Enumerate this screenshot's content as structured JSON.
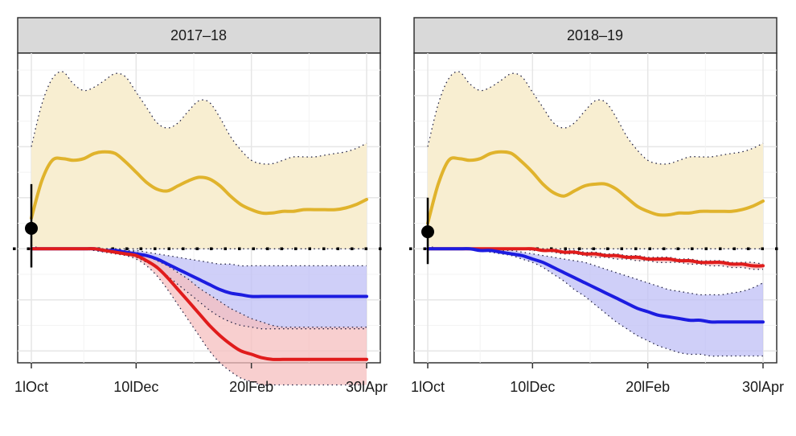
{
  "chart_data": [
    {
      "type": "line",
      "title": "2017–18",
      "x_ticks": [
        "1lOct",
        "10lDec",
        "20lFeb",
        "30lApr"
      ],
      "x": [
        0,
        1,
        2,
        3,
        4,
        5,
        6,
        7,
        8,
        9,
        10,
        11,
        12,
        13,
        14,
        15,
        16,
        17,
        18,
        19,
        20,
        21,
        22,
        23,
        24,
        25,
        26,
        27,
        28,
        29,
        30,
        31,
        32
      ],
      "baseline": 0,
      "observed_point": {
        "x": 0,
        "y": 0.12,
        "low": -0.11,
        "high": 0.38
      },
      "ylim": [
        -0.67,
        1.15
      ],
      "series": [
        {
          "color": "#e0b32c",
          "values": [
            0.18,
            0.4,
            0.52,
            0.53,
            0.52,
            0.53,
            0.56,
            0.57,
            0.56,
            0.51,
            0.45,
            0.39,
            0.35,
            0.34,
            0.37,
            0.4,
            0.42,
            0.41,
            0.37,
            0.31,
            0.26,
            0.23,
            0.21,
            0.21,
            0.22,
            0.22,
            0.23,
            0.23,
            0.23,
            0.23,
            0.24,
            0.26,
            0.29
          ],
          "lower": [
            0.02,
            0.0,
            0.0,
            0.0,
            0.0,
            0.0,
            0.0,
            0.0,
            0.0,
            0.0,
            0.0,
            0.0,
            0.0,
            0.0,
            0.0,
            0.0,
            0.0,
            0.0,
            0.0,
            0.0,
            0.0,
            0.0,
            0.0,
            0.0,
            0.0,
            0.0,
            0.0,
            0.0,
            0.0,
            0.0,
            0.0,
            0.0,
            0.0
          ],
          "upper": [
            0.6,
            0.85,
            1.0,
            1.04,
            0.97,
            0.93,
            0.95,
            0.99,
            1.03,
            1.01,
            0.92,
            0.83,
            0.74,
            0.71,
            0.74,
            0.81,
            0.87,
            0.86,
            0.77,
            0.66,
            0.58,
            0.52,
            0.5,
            0.5,
            0.52,
            0.54,
            0.54,
            0.54,
            0.55,
            0.56,
            0.57,
            0.59,
            0.62
          ]
        },
        {
          "color": "#1c1ce0",
          "values": [
            0.0,
            0.0,
            0.0,
            0.0,
            0.0,
            0.0,
            0.0,
            -0.01,
            -0.01,
            -0.02,
            -0.03,
            -0.04,
            -0.06,
            -0.09,
            -0.12,
            -0.15,
            -0.18,
            -0.21,
            -0.24,
            -0.26,
            -0.27,
            -0.28,
            -0.28,
            -0.28,
            -0.28,
            -0.28,
            -0.28,
            -0.28,
            -0.28,
            -0.28,
            -0.28,
            -0.28,
            -0.28
          ],
          "lower": [
            0.0,
            0.0,
            0.0,
            0.0,
            0.0,
            0.0,
            -0.01,
            -0.01,
            -0.02,
            -0.03,
            -0.05,
            -0.08,
            -0.11,
            -0.16,
            -0.21,
            -0.26,
            -0.31,
            -0.36,
            -0.4,
            -0.43,
            -0.45,
            -0.46,
            -0.47,
            -0.47,
            -0.47,
            -0.47,
            -0.47,
            -0.47,
            -0.47,
            -0.47,
            -0.47,
            -0.47,
            -0.47
          ],
          "upper": [
            0.0,
            0.0,
            0.0,
            0.0,
            0.0,
            0.0,
            0.0,
            0.0,
            0.0,
            -0.01,
            -0.01,
            -0.02,
            -0.03,
            -0.04,
            -0.05,
            -0.06,
            -0.07,
            -0.08,
            -0.09,
            -0.09,
            -0.1,
            -0.1,
            -0.1,
            -0.1,
            -0.1,
            -0.1,
            -0.1,
            -0.1,
            -0.1,
            -0.1,
            -0.1,
            -0.1,
            -0.1
          ]
        },
        {
          "color": "#e01c1c",
          "values": [
            0.0,
            0.0,
            0.0,
            0.0,
            0.0,
            0.0,
            0.0,
            -0.01,
            -0.02,
            -0.03,
            -0.04,
            -0.07,
            -0.11,
            -0.17,
            -0.24,
            -0.31,
            -0.38,
            -0.45,
            -0.51,
            -0.56,
            -0.6,
            -0.62,
            -0.64,
            -0.65,
            -0.65,
            -0.65,
            -0.65,
            -0.65,
            -0.65,
            -0.65,
            -0.65,
            -0.65,
            -0.65
          ],
          "lower": [
            0.0,
            0.0,
            0.0,
            0.0,
            0.0,
            0.0,
            -0.01,
            -0.02,
            -0.03,
            -0.04,
            -0.06,
            -0.1,
            -0.16,
            -0.24,
            -0.33,
            -0.42,
            -0.51,
            -0.6,
            -0.67,
            -0.72,
            -0.76,
            -0.78,
            -0.8,
            -0.8,
            -0.8,
            -0.8,
            -0.8,
            -0.8,
            -0.8,
            -0.8,
            -0.8,
            -0.8,
            -0.8
          ],
          "upper": [
            0.0,
            0.0,
            0.0,
            0.0,
            0.0,
            0.0,
            0.0,
            0.0,
            -0.01,
            -0.01,
            -0.02,
            -0.04,
            -0.07,
            -0.1,
            -0.14,
            -0.18,
            -0.23,
            -0.27,
            -0.31,
            -0.35,
            -0.38,
            -0.41,
            -0.43,
            -0.45,
            -0.46,
            -0.46,
            -0.46,
            -0.46,
            -0.46,
            -0.46,
            -0.46,
            -0.46,
            -0.46
          ]
        }
      ],
      "grid": true
    },
    {
      "type": "line",
      "title": "2018–19",
      "x_ticks": [
        "1lOct",
        "10lDec",
        "20lFeb",
        "30lApr"
      ],
      "x": [
        0,
        1,
        2,
        3,
        4,
        5,
        6,
        7,
        8,
        9,
        10,
        11,
        12,
        13,
        14,
        15,
        16,
        17,
        18,
        19,
        20,
        21,
        22,
        23,
        24,
        25,
        26,
        27,
        28,
        29,
        30,
        31,
        32
      ],
      "baseline": 0,
      "observed_point": {
        "x": 0,
        "y": 0.1,
        "low": -0.09,
        "high": 0.3
      },
      "ylim": [
        -0.67,
        1.15
      ],
      "series": [
        {
          "color": "#e0b32c",
          "values": [
            0.15,
            0.38,
            0.52,
            0.53,
            0.52,
            0.53,
            0.56,
            0.57,
            0.56,
            0.51,
            0.45,
            0.38,
            0.33,
            0.31,
            0.34,
            0.37,
            0.38,
            0.38,
            0.35,
            0.3,
            0.25,
            0.22,
            0.2,
            0.2,
            0.21,
            0.21,
            0.22,
            0.22,
            0.22,
            0.22,
            0.23,
            0.25,
            0.28
          ],
          "lower": [
            0.02,
            0.0,
            0.0,
            0.0,
            0.0,
            0.0,
            0.0,
            0.0,
            0.0,
            0.0,
            0.0,
            0.0,
            0.0,
            0.0,
            0.0,
            0.0,
            0.0,
            0.0,
            0.0,
            0.0,
            0.0,
            0.0,
            0.0,
            0.0,
            0.0,
            0.0,
            0.0,
            0.0,
            0.0,
            0.0,
            0.0,
            0.0,
            0.0
          ],
          "upper": [
            0.6,
            0.85,
            1.0,
            1.04,
            0.97,
            0.93,
            0.95,
            0.99,
            1.03,
            1.01,
            0.92,
            0.83,
            0.74,
            0.71,
            0.74,
            0.81,
            0.87,
            0.86,
            0.77,
            0.66,
            0.58,
            0.52,
            0.5,
            0.5,
            0.52,
            0.54,
            0.54,
            0.54,
            0.55,
            0.56,
            0.57,
            0.59,
            0.62
          ]
        },
        {
          "color": "#e01c1c",
          "values": [
            0.0,
            0.0,
            0.0,
            0.0,
            0.0,
            0.0,
            0.0,
            0.0,
            0.0,
            0.0,
            0.0,
            -0.01,
            -0.01,
            -0.02,
            -0.02,
            -0.03,
            -0.03,
            -0.04,
            -0.04,
            -0.05,
            -0.05,
            -0.06,
            -0.06,
            -0.06,
            -0.07,
            -0.07,
            -0.08,
            -0.08,
            -0.08,
            -0.09,
            -0.09,
            -0.1,
            -0.1
          ],
          "lower": [
            0.0,
            0.0,
            0.0,
            0.0,
            0.0,
            0.0,
            0.0,
            0.0,
            0.0,
            0.0,
            -0.01,
            -0.01,
            -0.02,
            -0.03,
            -0.03,
            -0.04,
            -0.05,
            -0.05,
            -0.06,
            -0.06,
            -0.07,
            -0.07,
            -0.08,
            -0.08,
            -0.08,
            -0.09,
            -0.09,
            -0.1,
            -0.1,
            -0.11,
            -0.11,
            -0.12,
            -0.12
          ],
          "upper": [
            0.0,
            0.0,
            0.0,
            0.0,
            0.0,
            0.0,
            0.0,
            0.0,
            0.0,
            0.0,
            0.0,
            0.0,
            -0.01,
            -0.01,
            -0.01,
            -0.02,
            -0.02,
            -0.03,
            -0.03,
            -0.04,
            -0.04,
            -0.05,
            -0.05,
            -0.05,
            -0.06,
            -0.06,
            -0.07,
            -0.07,
            -0.07,
            -0.08,
            -0.08,
            -0.08,
            -0.09
          ]
        },
        {
          "color": "#1c1ce0",
          "values": [
            0.0,
            0.0,
            0.0,
            0.0,
            0.0,
            -0.01,
            -0.01,
            -0.02,
            -0.03,
            -0.04,
            -0.06,
            -0.08,
            -0.11,
            -0.14,
            -0.17,
            -0.2,
            -0.23,
            -0.26,
            -0.29,
            -0.32,
            -0.35,
            -0.37,
            -0.39,
            -0.4,
            -0.41,
            -0.42,
            -0.42,
            -0.43,
            -0.43,
            -0.43,
            -0.43,
            -0.43,
            -0.43
          ],
          "lower": [
            0.0,
            0.0,
            0.0,
            0.0,
            0.0,
            -0.01,
            -0.02,
            -0.03,
            -0.04,
            -0.06,
            -0.08,
            -0.11,
            -0.15,
            -0.19,
            -0.24,
            -0.28,
            -0.33,
            -0.38,
            -0.43,
            -0.47,
            -0.51,
            -0.54,
            -0.57,
            -0.59,
            -0.61,
            -0.62,
            -0.62,
            -0.63,
            -0.63,
            -0.63,
            -0.63,
            -0.63,
            -0.63
          ],
          "upper": [
            0.0,
            0.0,
            0.0,
            0.0,
            0.0,
            0.0,
            0.0,
            -0.01,
            -0.01,
            -0.02,
            -0.03,
            -0.04,
            -0.05,
            -0.06,
            -0.07,
            -0.08,
            -0.1,
            -0.12,
            -0.14,
            -0.16,
            -0.18,
            -0.2,
            -0.22,
            -0.24,
            -0.25,
            -0.26,
            -0.27,
            -0.27,
            -0.27,
            -0.26,
            -0.25,
            -0.23,
            -0.2
          ]
        }
      ],
      "grid": true
    }
  ]
}
